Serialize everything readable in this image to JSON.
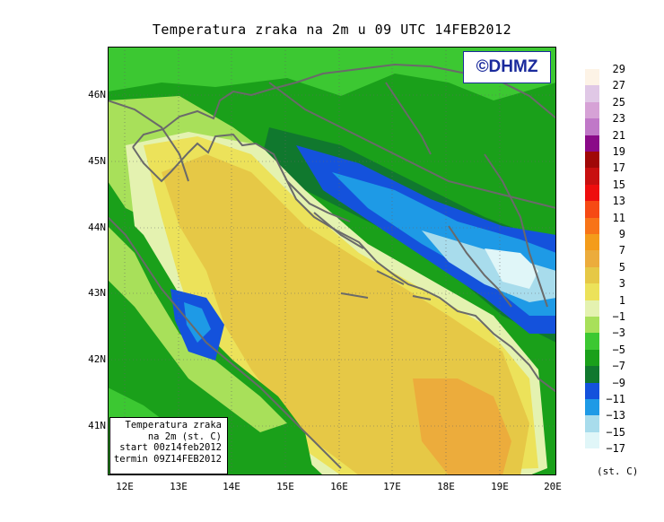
{
  "title": "Temperatura zraka na 2m u 09 UTC 14FEB2012",
  "logo": "©DHMZ",
  "y_ticks": [
    "46N",
    "45N",
    "44N",
    "43N",
    "42N",
    "41N"
  ],
  "x_ticks": [
    "12E",
    "13E",
    "14E",
    "15E",
    "16E",
    "17E",
    "18E",
    "19E",
    "20E"
  ],
  "legend": {
    "unit": "(st. C)",
    "items": [
      {
        "label": "29",
        "color": "#fdf3e6"
      },
      {
        "label": "27",
        "color": "#e0c8e6"
      },
      {
        "label": "25",
        "color": "#d6a2d6"
      },
      {
        "label": "23",
        "color": "#c078c8"
      },
      {
        "label": "21",
        "color": "#8a0a88"
      },
      {
        "label": "19",
        "color": "#a00808"
      },
      {
        "label": "17",
        "color": "#c81010"
      },
      {
        "label": "15",
        "color": "#ee0e0e"
      },
      {
        "label": "13",
        "color": "#f64a14"
      },
      {
        "label": "11",
        "color": "#f87418"
      },
      {
        "label": "9",
        "color": "#f49c1a"
      },
      {
        "label": "7",
        "color": "#ecac3c"
      },
      {
        "label": "5",
        "color": "#e6c846"
      },
      {
        "label": "3",
        "color": "#ece25a"
      },
      {
        "label": "1",
        "color": "#e4f2b0"
      },
      {
        "label": "−1",
        "color": "#a8e05a"
      },
      {
        "label": "−3",
        "color": "#3cc832"
      },
      {
        "label": "−5",
        "color": "#1aa01a"
      },
      {
        "label": "−7",
        "color": "#10782e"
      },
      {
        "label": "−9",
        "color": "#1452dc"
      },
      {
        "label": "−11",
        "color": "#1e9ae6"
      },
      {
        "label": "−13",
        "color": "#a8dcec"
      },
      {
        "label": "−15",
        "color": "#e0f6f8"
      },
      {
        "label": "−17",
        "color": "#ffffff"
      }
    ]
  },
  "info": {
    "line1": "Temperatura zraka",
    "line2": "na 2m (st. C)",
    "line3": "start 00z14feb2012",
    "line4": "termin 09Z14FEB2012"
  }
}
